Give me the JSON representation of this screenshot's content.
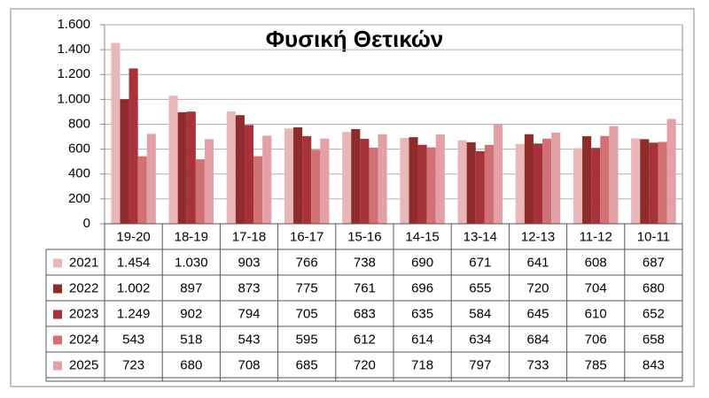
{
  "chart_data": {
    "type": "bar",
    "title": "Φυσική Θετικών",
    "categories": [
      "19-20",
      "18-19",
      "17-18",
      "16-17",
      "15-16",
      "14-15",
      "13-14",
      "12-13",
      "11-12",
      "10-11"
    ],
    "series": [
      {
        "name": "2021",
        "color": "#e9b7b7",
        "values": [
          1454,
          1030,
          903,
          766,
          738,
          690,
          671,
          641,
          608,
          687
        ],
        "value_labels": [
          "1.454",
          "1.030",
          "903",
          "766",
          "738",
          "690",
          "671",
          "641",
          "608",
          "687"
        ]
      },
      {
        "name": "2022",
        "color": "#8e2b2b",
        "values": [
          1002,
          897,
          873,
          775,
          761,
          696,
          655,
          720,
          704,
          680
        ],
        "value_labels": [
          "1.002",
          "897",
          "873",
          "775",
          "761",
          "696",
          "655",
          "720",
          "704",
          "680"
        ]
      },
      {
        "name": "2023",
        "color": "#a8323a",
        "values": [
          1249,
          902,
          794,
          705,
          683,
          635,
          584,
          645,
          610,
          652
        ],
        "value_labels": [
          "1.249",
          "902",
          "794",
          "705",
          "683",
          "635",
          "584",
          "645",
          "610",
          "652"
        ]
      },
      {
        "name": "2024",
        "color": "#d27174",
        "values": [
          543,
          518,
          543,
          595,
          612,
          614,
          634,
          684,
          706,
          658
        ]
      },
      {
        "name": "2025",
        "color": "#e4a1a5",
        "values": [
          723,
          680,
          708,
          685,
          720,
          718,
          797,
          733,
          785,
          843
        ]
      }
    ],
    "ylim": [
      0,
      1600
    ],
    "yticks": [
      0,
      200,
      400,
      600,
      800,
      {
        "value": 1000,
        "label": "1.000"
      },
      {
        "value": 1200,
        "label": "1.200"
      },
      {
        "value": 1400,
        "label": "1.400"
      },
      {
        "value": 1600,
        "label": "1.600"
      }
    ],
    "grid": true
  }
}
